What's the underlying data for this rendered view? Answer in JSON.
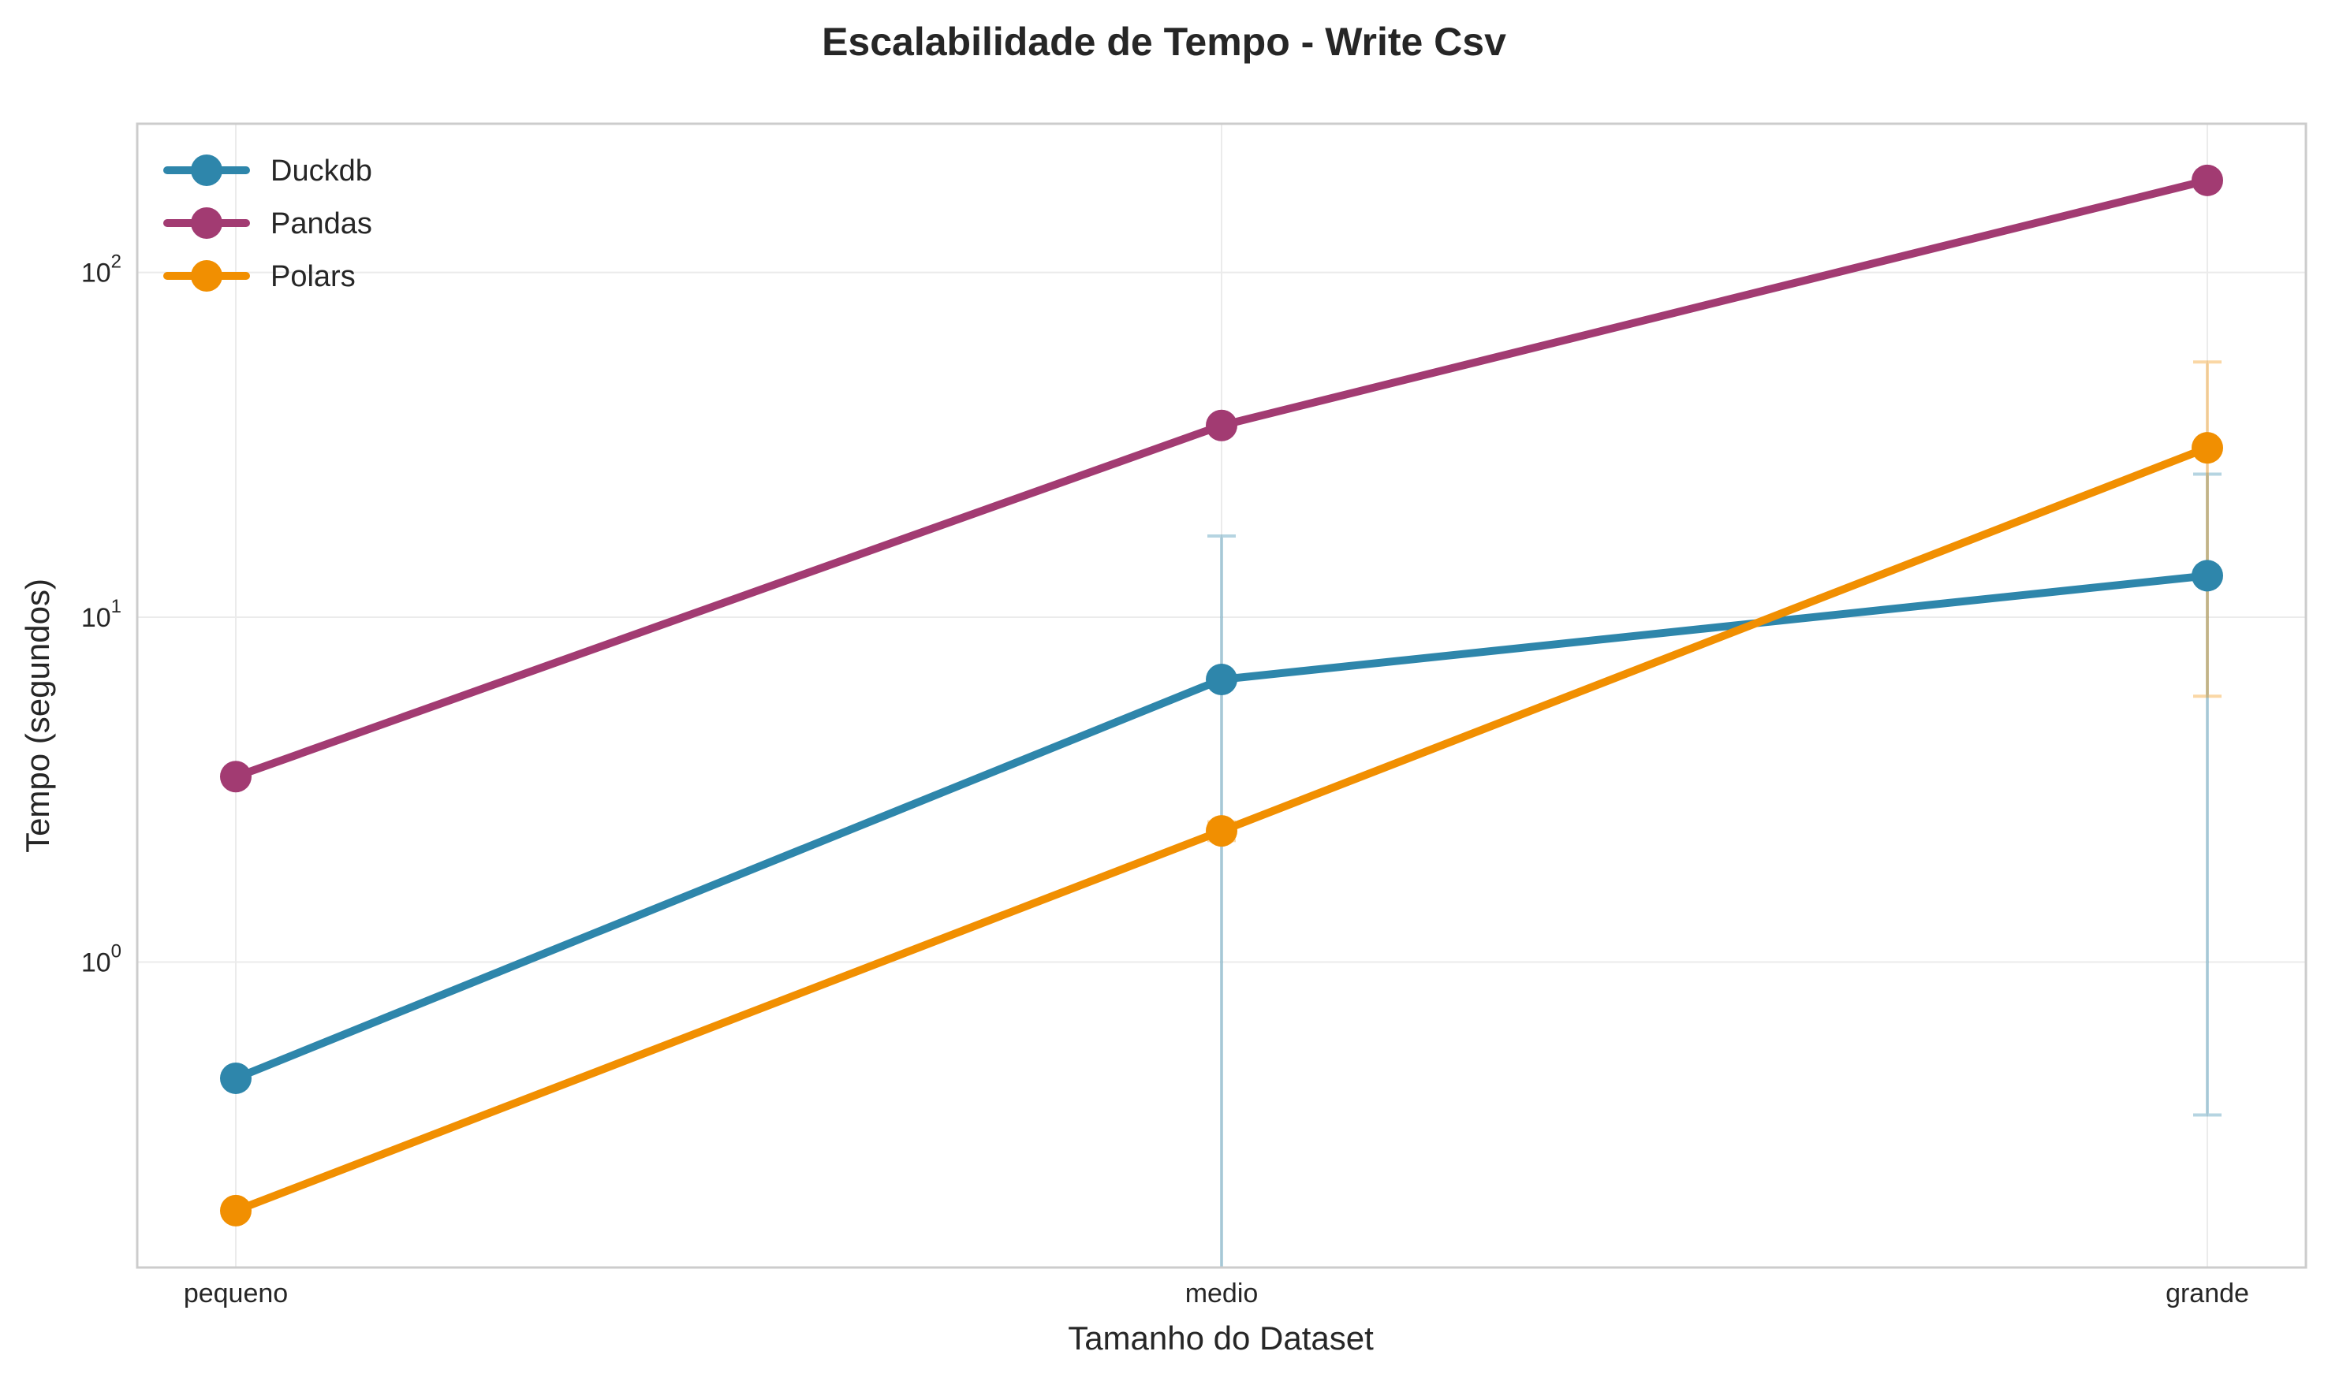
{
  "chart_data": {
    "type": "line",
    "title": "Escalabilidade de Tempo - Write Csv",
    "xlabel": "Tamanho do Dataset",
    "ylabel": "Tempo (segundos)",
    "categories": [
      "pequeno",
      "medio",
      "grande"
    ],
    "y_scale": "log",
    "ylim": [
      0.13,
      270
    ],
    "y_ticks": [
      {
        "value": 1,
        "base": "10",
        "exp": "0"
      },
      {
        "value": 10,
        "base": "10",
        "exp": "1"
      },
      {
        "value": 100,
        "base": "10",
        "exp": "2"
      }
    ],
    "grid": true,
    "legend_position": "top-left",
    "series": [
      {
        "name": "Duckdb",
        "color": "#2e86ab",
        "values": [
          0.46,
          6.6,
          13.2
        ],
        "error_bars": [
          null,
          {
            "low": 0.1,
            "high": 17.2
          },
          {
            "low": 0.36,
            "high": 26.0
          }
        ]
      },
      {
        "name": "Pandas",
        "color": "#a23b72",
        "values": [
          3.45,
          36.0,
          185.0
        ],
        "error_bars": [
          null,
          null,
          null
        ]
      },
      {
        "name": "Polars",
        "color": "#f18f01",
        "values": [
          0.19,
          2.4,
          31.0
        ],
        "error_bars": [
          null,
          {
            "low": 2.25,
            "high": 2.55
          },
          {
            "low": 5.9,
            "high": 55.0
          }
        ]
      }
    ]
  }
}
